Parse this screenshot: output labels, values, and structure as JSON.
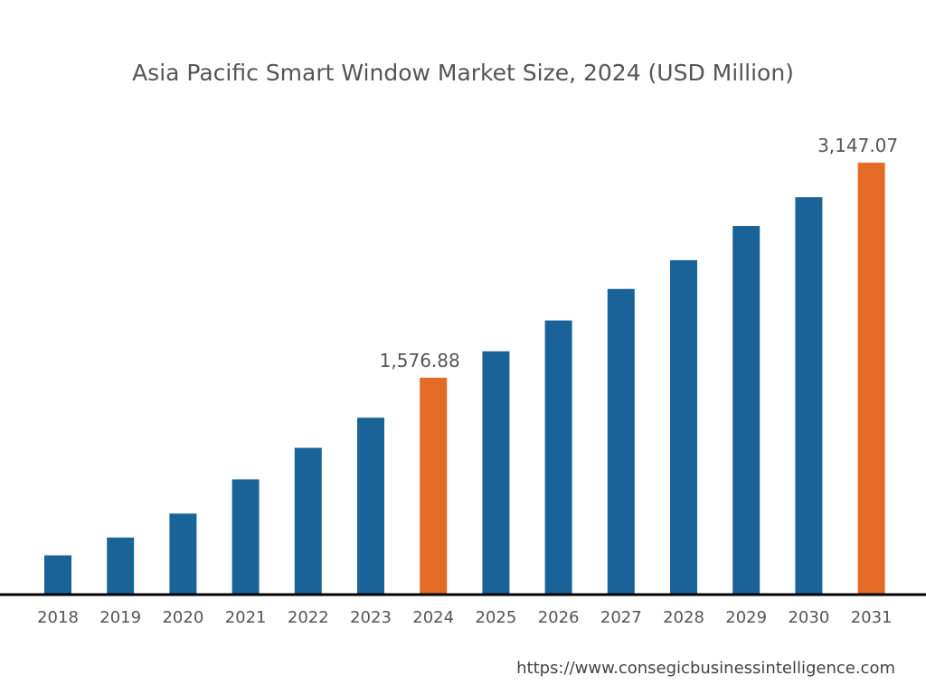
{
  "chart_data": {
    "type": "bar",
    "title": "Asia Pacific Smart Window Market Size, 2024 (USD Million)",
    "xlabel": "",
    "ylabel": "",
    "categories": [
      "2018",
      "2019",
      "2020",
      "2021",
      "2022",
      "2023",
      "2024",
      "2025",
      "2026",
      "2027",
      "2028",
      "2029",
      "2030",
      "2031"
    ],
    "values": [
      280,
      410,
      585,
      835,
      1065,
      1285,
      1576.88,
      1770,
      1995,
      2225,
      2435,
      2685,
      2895,
      3147.07
    ],
    "data_labels": {
      "2024": "1,576.88",
      "2031": "3,147.07"
    },
    "highlighted": [
      "2024",
      "2031"
    ],
    "ylim": [
      0,
      3147.07
    ],
    "grid": false,
    "legend": "none",
    "colors": {
      "bar": "#1a6399",
      "highlight": "#e36b25",
      "axis": "#000000",
      "text": "#555555"
    }
  },
  "source": "https://www.consegicbusinessintelligence.com"
}
